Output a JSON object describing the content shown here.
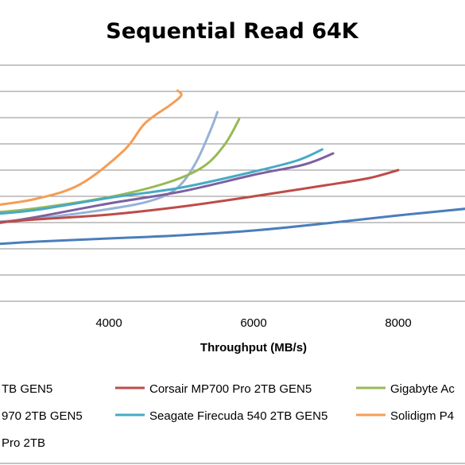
{
  "chart_data": {
    "type": "line",
    "title": "Sequential Read 64K",
    "xlabel": "Throughput  (MB/s)",
    "ylabel": "",
    "x_ticks": [
      "4000",
      "6000",
      "8000"
    ],
    "xlim": [
      2450,
      9300
    ],
    "grid": true,
    "legend_placement": "bottom",
    "series": [
      {
        "name": "TB GEN5",
        "color": "#4A7EBB",
        "points": [
          [
            2450,
            307
          ],
          [
            3000,
            304
          ],
          [
            4000,
            300
          ],
          [
            5000,
            296
          ],
          [
            6000,
            290
          ],
          [
            7000,
            281
          ],
          [
            8000,
            271
          ],
          [
            9000,
            262
          ],
          [
            9300,
            258
          ]
        ]
      },
      {
        "name": "Corsair MP700 Pro 2TB GEN5",
        "color": "#BE4B48",
        "points": [
          [
            2450,
            280
          ],
          [
            3000,
            276
          ],
          [
            4000,
            270
          ],
          [
            5000,
            260
          ],
          [
            6000,
            247
          ],
          [
            7000,
            233
          ],
          [
            7600,
            224
          ],
          [
            8000,
            214
          ]
        ]
      },
      {
        "name": "Gigabyte Ac",
        "color": "#98B954",
        "points": [
          [
            2450,
            267
          ],
          [
            3000,
            262
          ],
          [
            4000,
            248
          ],
          [
            4800,
            230
          ],
          [
            5300,
            210
          ],
          [
            5600,
            182
          ],
          [
            5800,
            150
          ]
        ]
      },
      {
        "name": "970 2TB GEN5",
        "color": "#7D60A0",
        "points": [
          [
            2450,
            281
          ],
          [
            3000,
            273
          ],
          [
            4000,
            256
          ],
          [
            5000,
            241
          ],
          [
            6000,
            220
          ],
          [
            6700,
            207
          ],
          [
            7100,
            193
          ]
        ]
      },
      {
        "name": "Seagate Firecuda 540 2TB GEN5",
        "color": "#46AAC5",
        "points": [
          [
            2450,
            269
          ],
          [
            3000,
            264
          ],
          [
            4000,
            249
          ],
          [
            5000,
            236
          ],
          [
            6000,
            216
          ],
          [
            6600,
            202
          ],
          [
            6950,
            188
          ]
        ]
      },
      {
        "name": "Solidigm P4",
        "color": "#F59D56",
        "points": [
          [
            2450,
            258
          ],
          [
            3000,
            250
          ],
          [
            3600,
            232
          ],
          [
            4200,
            190
          ],
          [
            4500,
            155
          ],
          [
            4850,
            132
          ],
          [
            5000,
            120
          ],
          [
            4950,
            114
          ]
        ]
      },
      {
        "name": "Pro 2TB",
        "color": "#95B3D7",
        "points": [
          [
            2450,
            279
          ],
          [
            3000,
            275
          ],
          [
            4000,
            263
          ],
          [
            4600,
            252
          ],
          [
            4950,
            236
          ],
          [
            5200,
            205
          ],
          [
            5400,
            165
          ],
          [
            5500,
            141
          ]
        ]
      }
    ]
  }
}
